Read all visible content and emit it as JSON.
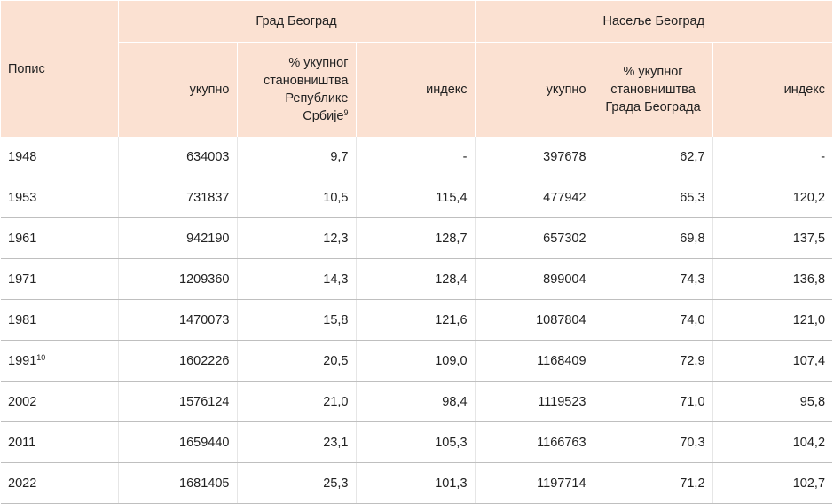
{
  "header": {
    "popis": "Попис",
    "group1": "Град Београд",
    "group2": "Насеље Београд",
    "g1_total": "укупно",
    "g1_share_lines": [
      "% укупног",
      "становништва",
      "Републике",
      "Србије"
    ],
    "g1_share_note": "9",
    "g1_index": "индекс",
    "g2_total": "укупно",
    "g2_share_lines": [
      "% укупног",
      "становништва",
      "Града Београда"
    ],
    "g2_index": "индекс"
  },
  "rows": [
    {
      "year": "1948",
      "note": "",
      "g1_total": "634003",
      "g1_share": "9,7",
      "g1_index": "-",
      "g2_total": "397678",
      "g2_share": "62,7",
      "g2_index": "-"
    },
    {
      "year": "1953",
      "note": "",
      "g1_total": "731837",
      "g1_share": "10,5",
      "g1_index": "115,4",
      "g2_total": "477942",
      "g2_share": "65,3",
      "g2_index": "120,2"
    },
    {
      "year": "1961",
      "note": "",
      "g1_total": "942190",
      "g1_share": "12,3",
      "g1_index": "128,7",
      "g2_total": "657302",
      "g2_share": "69,8",
      "g2_index": "137,5"
    },
    {
      "year": "1971",
      "note": "",
      "g1_total": "1209360",
      "g1_share": "14,3",
      "g1_index": "128,4",
      "g2_total": "899004",
      "g2_share": "74,3",
      "g2_index": "136,8"
    },
    {
      "year": "1981",
      "note": "",
      "g1_total": "1470073",
      "g1_share": "15,8",
      "g1_index": "121,6",
      "g2_total": "1087804",
      "g2_share": "74,0",
      "g2_index": "121,0"
    },
    {
      "year": "1991",
      "note": "10",
      "g1_total": "1602226",
      "g1_share": "20,5",
      "g1_index": "109,0",
      "g2_total": "1168409",
      "g2_share": "72,9",
      "g2_index": "107,4"
    },
    {
      "year": "2002",
      "note": "",
      "g1_total": "1576124",
      "g1_share": "21,0",
      "g1_index": "98,4",
      "g2_total": "1119523",
      "g2_share": "71,0",
      "g2_index": "95,8"
    },
    {
      "year": "2011",
      "note": "",
      "g1_total": "1659440",
      "g1_share": "23,1",
      "g1_index": "105,3",
      "g2_total": "1166763",
      "g2_share": "70,3",
      "g2_index": "104,2"
    },
    {
      "year": "2022",
      "note": "",
      "g1_total": "1681405",
      "g1_share": "25,3",
      "g1_index": "101,3",
      "g2_total": "1197714",
      "g2_share": "71,2",
      "g2_index": "102,7"
    }
  ]
}
